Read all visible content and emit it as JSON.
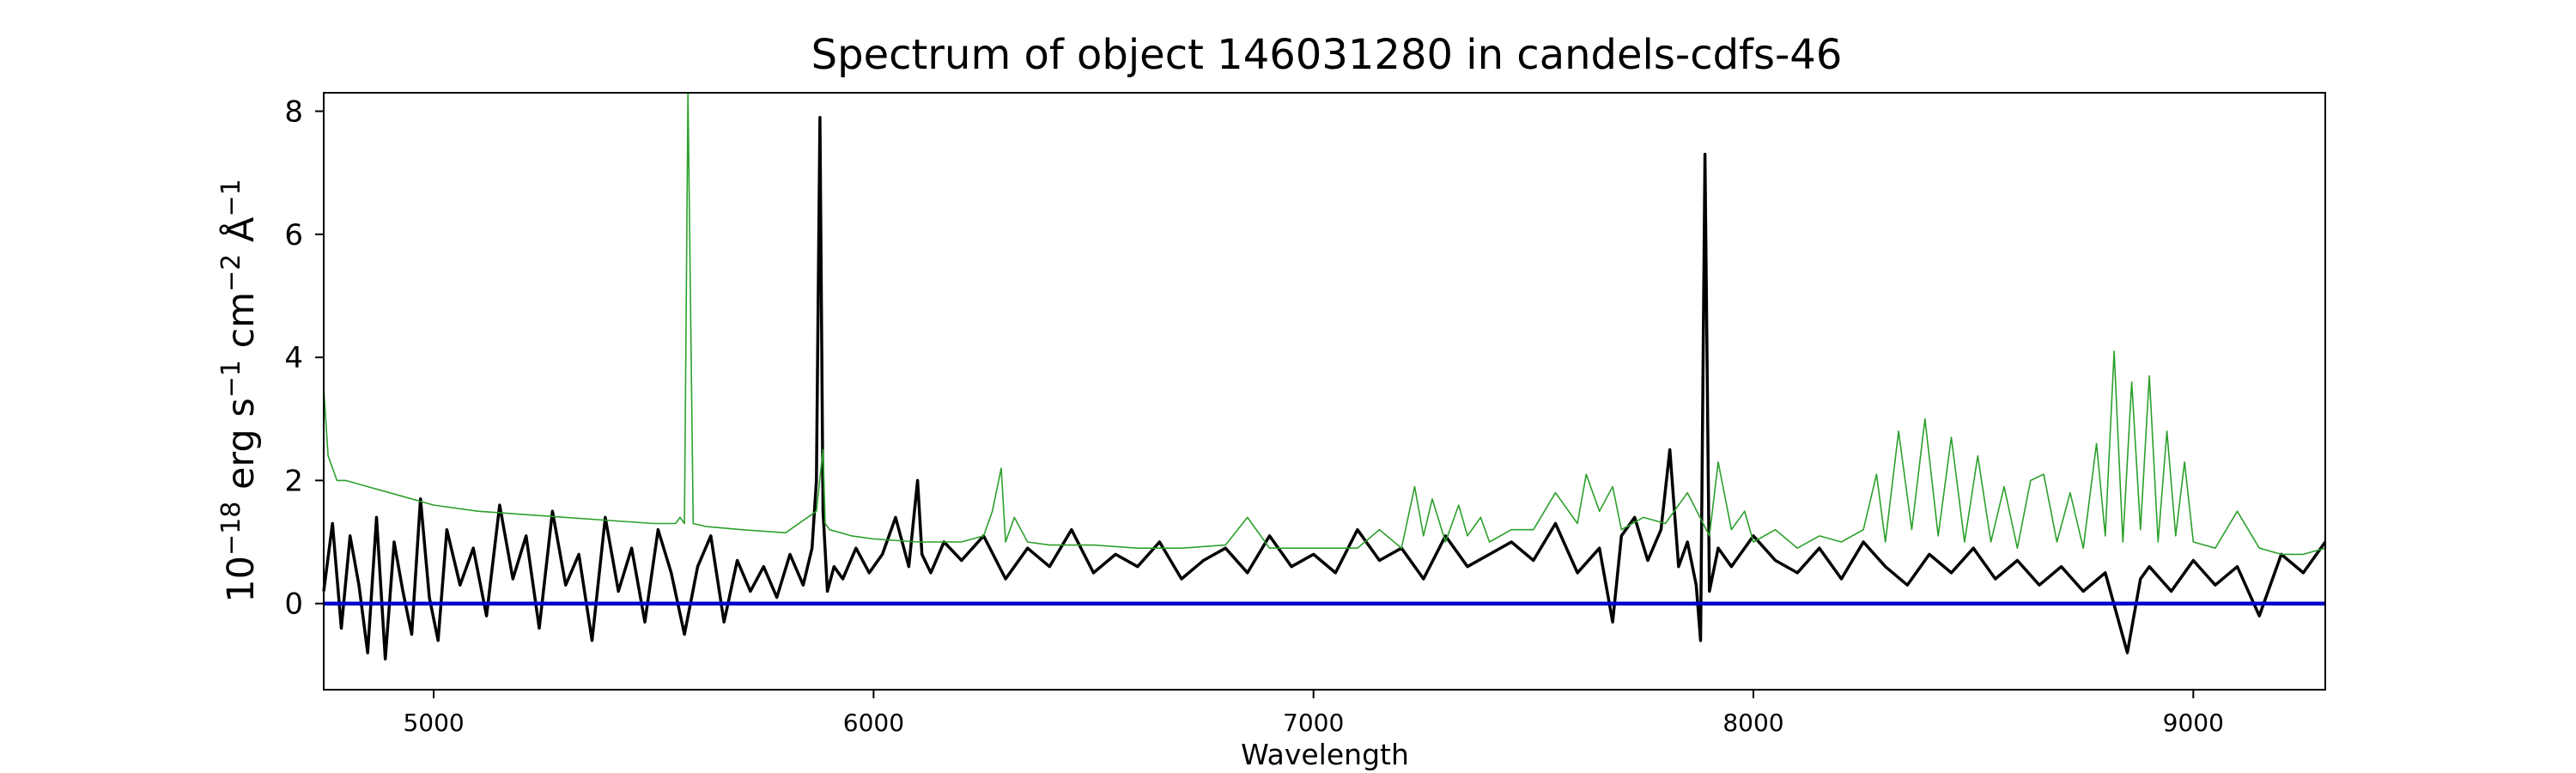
{
  "chart_data": {
    "type": "line",
    "title": "Spectrum of object 146031280 in candels-cdfs-46",
    "xlabel": "Wavelength",
    "ylabel": "10^-18 erg s^-1 cm^-2 Å^-1",
    "xlim": [
      4750,
      9300
    ],
    "ylim": [
      -1.4,
      8.3
    ],
    "xticks": [
      5000,
      6000,
      7000,
      8000,
      9000
    ],
    "yticks": [
      0,
      2,
      4,
      6,
      8
    ],
    "grid": false,
    "legend": "none",
    "series": [
      {
        "color": "#000000",
        "x": [
          4750,
          4770,
          4790,
          4810,
          4830,
          4850,
          4870,
          4890,
          4910,
          4930,
          4950,
          4970,
          4990,
          5010,
          5030,
          5060,
          5090,
          5120,
          5150,
          5180,
          5210,
          5240,
          5270,
          5300,
          5330,
          5360,
          5390,
          5420,
          5450,
          5480,
          5510,
          5540,
          5570,
          5600,
          5630,
          5660,
          5690,
          5720,
          5750,
          5780,
          5810,
          5840,
          5860,
          5870,
          5878,
          5885,
          5895,
          5910,
          5930,
          5960,
          5990,
          6020,
          6050,
          6080,
          6100,
          6110,
          6130,
          6160,
          6200,
          6250,
          6300,
          6350,
          6400,
          6450,
          6500,
          6550,
          6600,
          6650,
          6700,
          6750,
          6800,
          6850,
          6900,
          6950,
          7000,
          7050,
          7100,
          7150,
          7200,
          7250,
          7300,
          7350,
          7400,
          7450,
          7500,
          7550,
          7600,
          7650,
          7680,
          7700,
          7730,
          7760,
          7790,
          7810,
          7830,
          7850,
          7870,
          7880,
          7890,
          7900,
          7920,
          7950,
          8000,
          8050,
          8100,
          8150,
          8200,
          8250,
          8300,
          8350,
          8400,
          8450,
          8500,
          8550,
          8600,
          8650,
          8700,
          8750,
          8800,
          8850,
          8880,
          8900,
          8950,
          9000,
          9050,
          9100,
          9150,
          9200,
          9250,
          9300
        ],
        "y": [
          0.2,
          1.3,
          -0.4,
          1.1,
          0.3,
          -0.8,
          1.4,
          -0.9,
          1.0,
          0.2,
          -0.5,
          1.7,
          0.1,
          -0.6,
          1.2,
          0.3,
          0.9,
          -0.2,
          1.6,
          0.4,
          1.1,
          -0.4,
          1.5,
          0.3,
          0.8,
          -0.6,
          1.4,
          0.2,
          0.9,
          -0.3,
          1.2,
          0.5,
          -0.5,
          0.6,
          1.1,
          -0.3,
          0.7,
          0.2,
          0.6,
          0.1,
          0.8,
          0.3,
          0.9,
          2.0,
          7.9,
          1.5,
          0.2,
          0.6,
          0.4,
          0.9,
          0.5,
          0.8,
          1.4,
          0.6,
          2.0,
          0.8,
          0.5,
          1.0,
          0.7,
          1.1,
          0.4,
          0.9,
          0.6,
          1.2,
          0.5,
          0.8,
          0.6,
          1.0,
          0.4,
          0.7,
          0.9,
          0.5,
          1.1,
          0.6,
          0.8,
          0.5,
          1.2,
          0.7,
          0.9,
          0.4,
          1.1,
          0.6,
          0.8,
          1.0,
          0.7,
          1.3,
          0.5,
          0.9,
          -0.3,
          1.1,
          1.4,
          0.7,
          1.2,
          2.5,
          0.6,
          1.0,
          0.3,
          -0.6,
          7.3,
          0.2,
          0.9,
          0.6,
          1.1,
          0.7,
          0.5,
          0.9,
          0.4,
          1.0,
          0.6,
          0.3,
          0.8,
          0.5,
          0.9,
          0.4,
          0.7,
          0.3,
          0.6,
          0.2,
          0.5,
          -0.8,
          0.4,
          0.6,
          0.2,
          0.7,
          0.3,
          0.6,
          -0.2,
          0.8,
          0.5,
          1.0
        ]
      },
      {
        "color": "#2ca02c",
        "x": [
          4750,
          4760,
          4780,
          4800,
          4850,
          4900,
          5000,
          5100,
          5200,
          5300,
          5400,
          5500,
          5550,
          5560,
          5570,
          5578,
          5590,
          5620,
          5700,
          5800,
          5870,
          5885,
          5890,
          5900,
          5950,
          6000,
          6100,
          6200,
          6250,
          6270,
          6290,
          6300,
          6320,
          6350,
          6400,
          6500,
          6600,
          6700,
          6800,
          6850,
          6900,
          7000,
          7100,
          7150,
          7200,
          7230,
          7250,
          7270,
          7300,
          7330,
          7350,
          7380,
          7400,
          7450,
          7500,
          7550,
          7600,
          7620,
          7650,
          7680,
          7700,
          7750,
          7800,
          7850,
          7900,
          7920,
          7950,
          7980,
          8000,
          8050,
          8100,
          8150,
          8200,
          8250,
          8280,
          8300,
          8330,
          8360,
          8390,
          8420,
          8450,
          8480,
          8510,
          8540,
          8570,
          8600,
          8630,
          8660,
          8690,
          8720,
          8750,
          8780,
          8800,
          8820,
          8840,
          8860,
          8880,
          8900,
          8920,
          8940,
          8960,
          8980,
          9000,
          9050,
          9100,
          9150,
          9200,
          9250,
          9300
        ],
        "y": [
          3.5,
          2.4,
          2.0,
          2.0,
          1.9,
          1.8,
          1.6,
          1.5,
          1.45,
          1.4,
          1.35,
          1.3,
          1.3,
          1.4,
          1.3,
          8.3,
          1.3,
          1.25,
          1.2,
          1.15,
          1.5,
          2.5,
          1.3,
          1.2,
          1.1,
          1.05,
          1.0,
          1.0,
          1.1,
          1.5,
          2.2,
          1.0,
          1.4,
          1.0,
          0.95,
          0.95,
          0.9,
          0.9,
          0.95,
          1.4,
          0.9,
          0.9,
          0.9,
          1.2,
          0.9,
          1.9,
          1.1,
          1.7,
          1.0,
          1.6,
          1.1,
          1.4,
          1.0,
          1.2,
          1.2,
          1.8,
          1.3,
          2.1,
          1.5,
          1.9,
          1.2,
          1.4,
          1.3,
          1.8,
          1.1,
          2.3,
          1.2,
          1.5,
          1.0,
          1.2,
          0.9,
          1.1,
          1.0,
          1.2,
          2.1,
          1.0,
          2.8,
          1.2,
          3.0,
          1.1,
          2.7,
          1.0,
          2.4,
          1.0,
          1.9,
          0.9,
          2.0,
          2.1,
          1.0,
          1.8,
          0.9,
          2.6,
          1.1,
          4.1,
          1.0,
          3.6,
          1.2,
          3.7,
          1.0,
          2.8,
          1.1,
          2.3,
          1.0,
          0.9,
          1.5,
          0.9,
          0.8,
          0.8,
          0.9
        ]
      },
      {
        "color": "#0000cc",
        "x": [
          4750,
          9300
        ],
        "y": [
          0,
          0
        ]
      }
    ]
  }
}
